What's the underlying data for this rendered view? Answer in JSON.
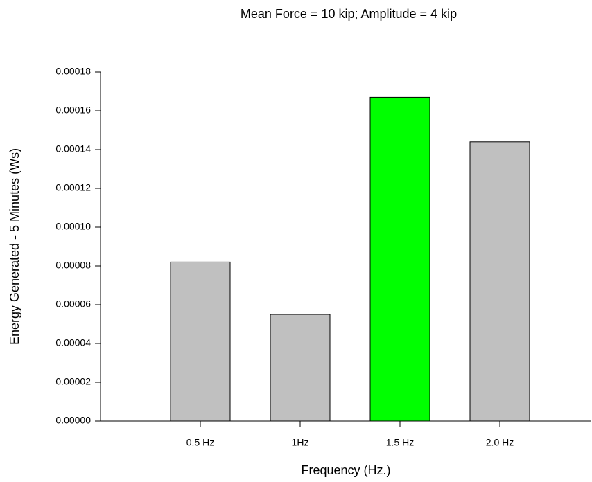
{
  "chart_data": {
    "type": "bar",
    "title": "Mean Force = 10 kip; Amplitude = 4 kip",
    "x_label": "Frequency (Hz.)",
    "y_label": "Energy Generated - 5 Minutes (Ws)",
    "categories": [
      "0.5 Hz",
      "1Hz",
      "1.5 Hz",
      "2.0 Hz"
    ],
    "values": [
      8.2e-05,
      5.5e-05,
      0.000167,
      0.000144
    ],
    "colors": [
      "#c0c0c0",
      "#c0c0c0",
      "#00ff00",
      "#c0c0c0"
    ],
    "ylim": [
      0,
      0.00018
    ],
    "yticks": [
      {
        "value": 0,
        "label": "0.00000"
      },
      2e-05,
      4e-05,
      6e-05,
      8e-05,
      {
        "value": 0.0001,
        "label": "0.00010"
      },
      0.00012,
      0.00014,
      0.00016,
      0.00018
    ],
    "grid": false
  }
}
